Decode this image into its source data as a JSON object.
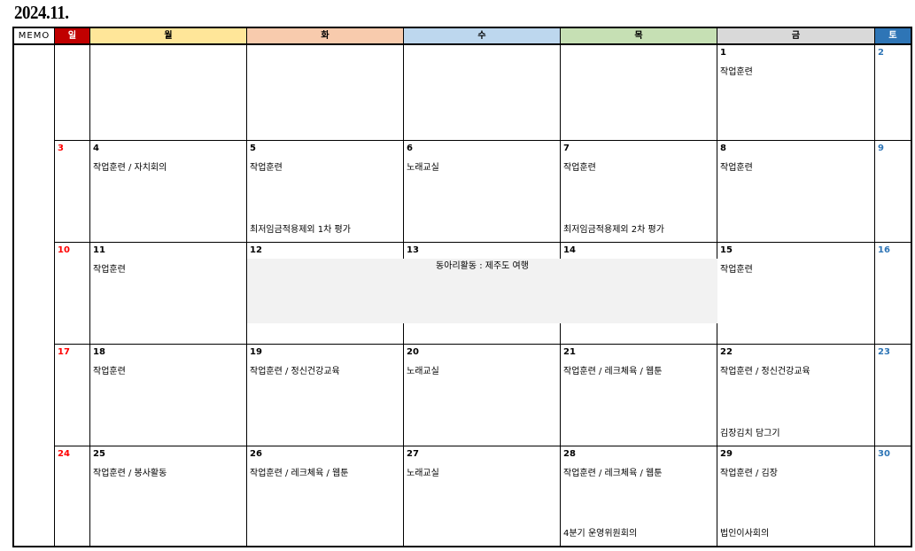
{
  "title": "2024.11.",
  "memo_label": "MEMO",
  "headers": [
    {
      "label": "일",
      "bg": "#c00000",
      "color": "#ffffff"
    },
    {
      "label": "월",
      "bg": "#ffe699",
      "color": "#000000"
    },
    {
      "label": "화",
      "bg": "#f8cbad",
      "color": "#000000"
    },
    {
      "label": "수",
      "bg": "#bdd7ee",
      "color": "#000000"
    },
    {
      "label": "목",
      "bg": "#c6e0b4",
      "color": "#000000"
    },
    {
      "label": "금",
      "bg": "#d9d9d9",
      "color": "#000000"
    },
    {
      "label": "토",
      "bg": "#2e75b6",
      "color": "#ffffff"
    }
  ],
  "colors": {
    "sunday": "#ff0000",
    "saturday": "#2e75b6",
    "weekday": "#000000",
    "span_bg": "#f2f2f2"
  },
  "weeks": [
    {
      "days": [
        {
          "day": "",
          "event": "",
          "bottom": ""
        },
        {
          "day": "",
          "event": "",
          "bottom": ""
        },
        {
          "day": "",
          "event": "",
          "bottom": ""
        },
        {
          "day": "",
          "event": "",
          "bottom": ""
        },
        {
          "day": "",
          "event": "",
          "bottom": ""
        },
        {
          "day": "1",
          "event": "작업훈련",
          "bottom": ""
        },
        {
          "day": "2",
          "event": "",
          "bottom": ""
        }
      ]
    },
    {
      "days": [
        {
          "day": "3",
          "event": "",
          "bottom": ""
        },
        {
          "day": "4",
          "event": "작업훈련 / 자치회의",
          "bottom": ""
        },
        {
          "day": "5",
          "event": "작업훈련",
          "bottom": "최저임금적용제외 1차 평가"
        },
        {
          "day": "6",
          "event": "노래교실",
          "bottom": ""
        },
        {
          "day": "7",
          "event": "작업훈련",
          "bottom": "최저임금적용제외 2차 평가"
        },
        {
          "day": "8",
          "event": "작업훈련",
          "bottom": ""
        },
        {
          "day": "9",
          "event": "",
          "bottom": ""
        }
      ]
    },
    {
      "days": [
        {
          "day": "10",
          "event": "",
          "bottom": ""
        },
        {
          "day": "11",
          "event": "작업훈련",
          "bottom": ""
        },
        {
          "day": "12",
          "event": "",
          "bottom": ""
        },
        {
          "day": "13",
          "event": "",
          "bottom": ""
        },
        {
          "day": "14",
          "event": "",
          "bottom": ""
        },
        {
          "day": "15",
          "event": "작업훈련",
          "bottom": ""
        },
        {
          "day": "16",
          "event": "",
          "bottom": ""
        }
      ],
      "span_event": {
        "label": "동아리활동 : 제주도 여행",
        "from_day": "12",
        "to_day": "14"
      }
    },
    {
      "days": [
        {
          "day": "17",
          "event": "",
          "bottom": ""
        },
        {
          "day": "18",
          "event": "작업훈련",
          "bottom": ""
        },
        {
          "day": "19",
          "event": "작업훈련 / 정신건강교육",
          "bottom": ""
        },
        {
          "day": "20",
          "event": "노래교실",
          "bottom": ""
        },
        {
          "day": "21",
          "event": "작업훈련 / 레크체육 / 웹툰",
          "bottom": ""
        },
        {
          "day": "22",
          "event": "작업훈련 / 정신건강교육",
          "bottom": "김장김치 담그기"
        },
        {
          "day": "23",
          "event": "",
          "bottom": ""
        }
      ]
    },
    {
      "days": [
        {
          "day": "24",
          "event": "",
          "bottom": ""
        },
        {
          "day": "25",
          "event": "작업훈련 / 봉사활동",
          "bottom": ""
        },
        {
          "day": "26",
          "event": "작업훈련 / 레크체육 / 웹툰",
          "bottom": ""
        },
        {
          "day": "27",
          "event": "노래교실",
          "bottom": ""
        },
        {
          "day": "28",
          "event": "작업훈련 / 레크체육 / 웹툰",
          "bottom": "4분기 운영위원회의"
        },
        {
          "day": "29",
          "event": "작업훈련 / 김장",
          "bottom": "법인이사회의"
        },
        {
          "day": "30",
          "event": "",
          "bottom": ""
        }
      ]
    }
  ]
}
